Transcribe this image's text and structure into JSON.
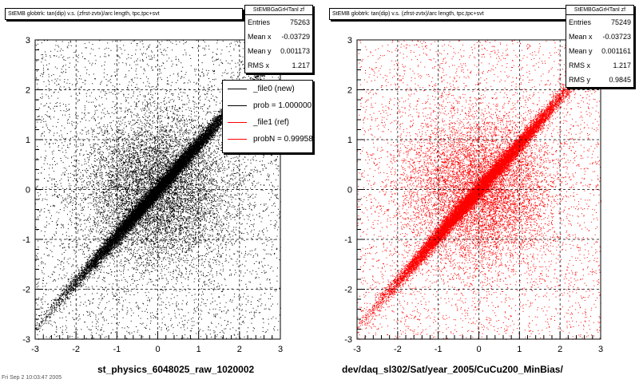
{
  "chart_data": [
    {
      "type": "scatter",
      "title": "StEMB globtrk: tan(dip) v.s. (zfrst-zvtx)/arc length, tpc,tpc+svt",
      "xlim": [
        -3,
        3
      ],
      "ylim": [
        -3,
        3
      ],
      "xticks": [
        "-3",
        "-2",
        "-1",
        "0",
        "1",
        "2",
        "3"
      ],
      "yticks": [
        "-3",
        "-2",
        "-1",
        "0",
        "1",
        "2",
        "3"
      ],
      "xlabel": "st_physics_6048025_raw_1020002",
      "ylabel": "",
      "color": "#000000",
      "grid": true,
      "stats": {
        "name": "StEMBGaGrHTanl zf",
        "rows": [
          {
            "label": "Entries",
            "value": "75263"
          },
          {
            "label": "Mean x",
            "value": "-0.03729"
          },
          {
            "label": "Mean y",
            "value": "0.001173"
          },
          {
            "label": "RMS x",
            "value": "1.217"
          }
        ]
      },
      "legend": {
        "placement": "top-right",
        "entries": [
          {
            "label": "_file0 (new)",
            "color": "#000000"
          },
          {
            "label": "prob = 1.000000",
            "color": "#000000"
          },
          {
            "label": "_file1 (ref)",
            "color": "#ff0000"
          },
          {
            "label": "probN = 0.99958",
            "color": "#ff0000"
          }
        ]
      }
    },
    {
      "type": "scatter",
      "title": "StEMB globtrk: tan(dip) v.s. (zfrst-zvtx)/arc length, tpc,tpc+svt",
      "xlim": [
        -3,
        3
      ],
      "ylim": [
        -3,
        3
      ],
      "xticks": [
        "-3",
        "-2",
        "-1",
        "0",
        "1",
        "2",
        "3"
      ],
      "yticks": [
        "-3",
        "-2",
        "-1",
        "0",
        "1",
        "2",
        "3"
      ],
      "xlabel": "dev/daq_sl302/Sat/year_2005/CuCu200_MinBias/",
      "ylabel": "",
      "color": "#ff0000",
      "grid": true,
      "stats": {
        "name": "StEMBGaGrHTanl zf",
        "rows": [
          {
            "label": "Entries",
            "value": "75249"
          },
          {
            "label": "Mean x",
            "value": "-0.03723"
          },
          {
            "label": "Mean y",
            "value": "0.001161"
          },
          {
            "label": "RMS x",
            "value": "1.217"
          },
          {
            "label": "RMS y",
            "value": "0.9845"
          }
        ]
      }
    }
  ],
  "footer": "Fri Sep 2 10:03:47 2005"
}
